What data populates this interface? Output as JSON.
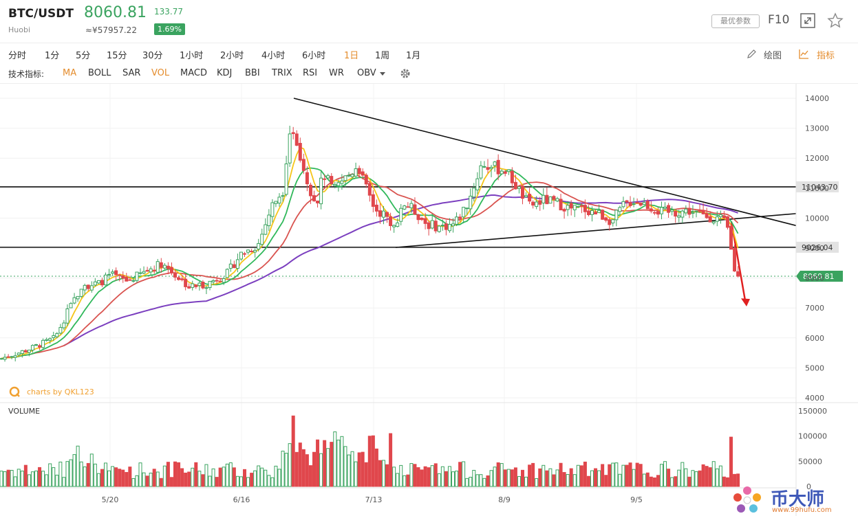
{
  "header": {
    "pair": "BTC/USDT",
    "exchange": "Huobi",
    "price": "8060.81",
    "change": "133.77",
    "cny_price": "≈¥57957.22",
    "change_pct": "1.69%",
    "best_params_label": "最优参数",
    "f10_label": "F10",
    "fullscreen_icon": "fullscreen-icon",
    "star_icon": "star-icon",
    "up_color": "#3aa35f"
  },
  "timeframes": [
    "分时",
    "1分",
    "5分",
    "15分",
    "30分",
    "1小时",
    "2小时",
    "4小时",
    "6小时",
    "1日",
    "1周",
    "1月"
  ],
  "timeframe_selected": "1日",
  "tools": {
    "draw_label": "绘图",
    "indicator_label": "指标"
  },
  "indicators": {
    "label": "技术指标:",
    "items": [
      "MA",
      "BOLL",
      "SAR",
      "VOL",
      "MACD",
      "KDJ",
      "BBI",
      "TRIX",
      "RSI",
      "WR",
      "OBV"
    ],
    "active": [
      "MA",
      "VOL"
    ],
    "settings_icon": "gear-icon"
  },
  "chart_data": {
    "type": "candlestick",
    "price_axis": {
      "ylim": [
        3800,
        14400
      ],
      "ticks": [
        4000,
        5000,
        6000,
        7000,
        8000,
        9000,
        10000,
        11000,
        12000,
        13000,
        14000
      ]
    },
    "volume_label": "VOLUME",
    "volume_axis": {
      "ylim": [
        0,
        150000
      ],
      "ticks": [
        0,
        50000,
        100000,
        150000
      ]
    },
    "x_ticks": [
      "5/20",
      "6/16",
      "7/13",
      "8/9",
      "9/5"
    ],
    "horizontal_levels": [
      11043.7,
      9026.04
    ],
    "level_labels": [
      "11043.70",
      "9026.04"
    ],
    "current_price_label": "8060.81",
    "watermark": "charts by QKL123",
    "colors": {
      "up": "#3aa35f",
      "down": "#e0474c",
      "ma5": "#f5c518",
      "ma10": "#2fb85a",
      "ma20": "#d9534f",
      "ma60": "#7b3fbf",
      "arrow": "#e02020"
    }
  },
  "watermark": {
    "brand": "币大师",
    "url": "www.99hufu.com"
  }
}
